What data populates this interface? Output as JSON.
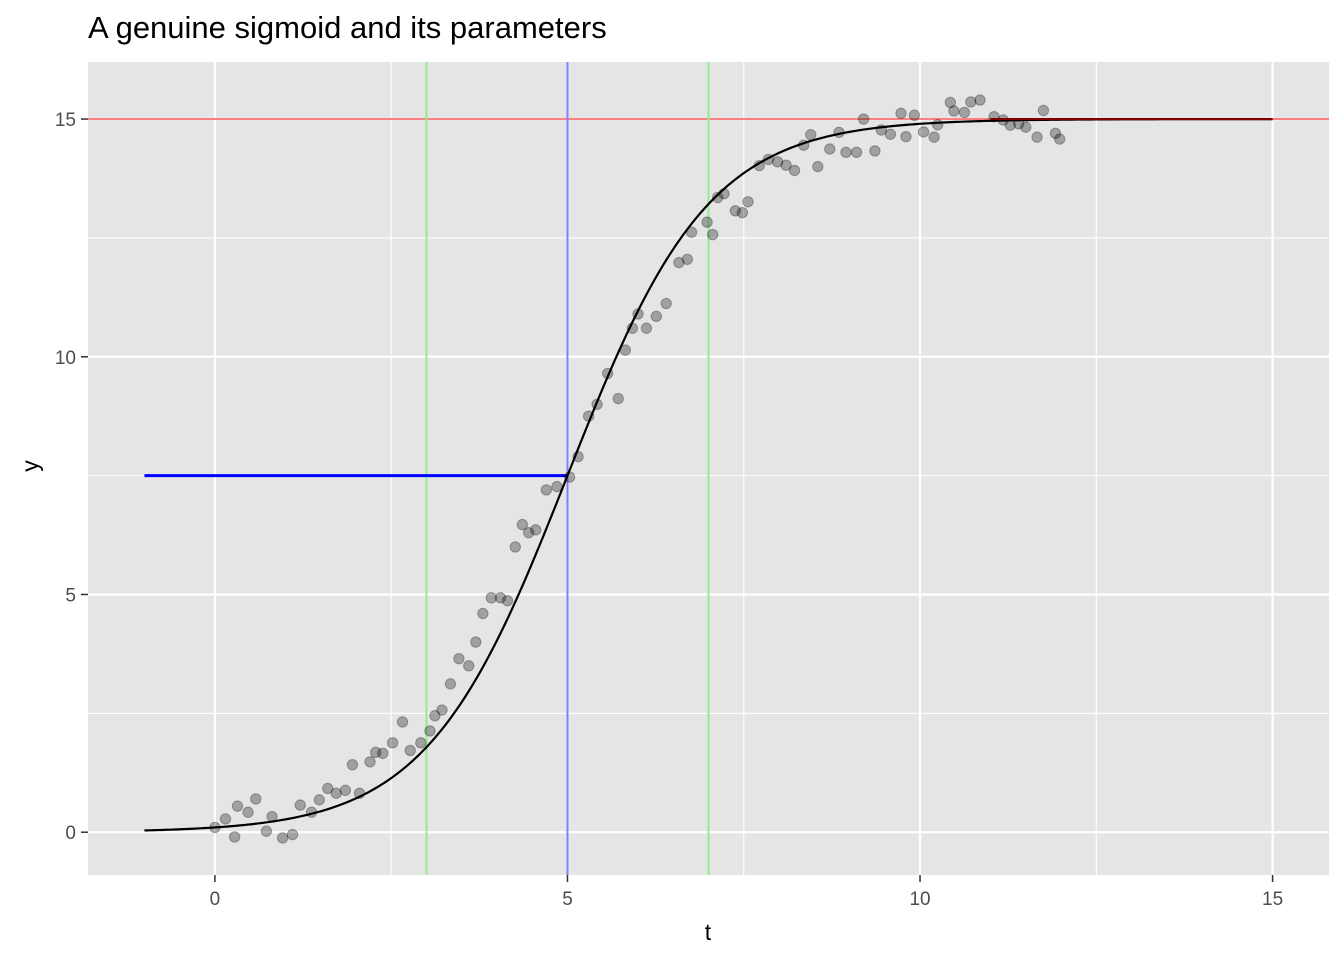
{
  "chart_data": {
    "type": "scatter",
    "title": "A genuine sigmoid and its parameters",
    "xlabel": "t",
    "ylabel": "y",
    "xlim": [
      -1.8,
      15.8
    ],
    "ylim": [
      -0.9,
      16.2
    ],
    "x_ticks": [
      0,
      5,
      10,
      15
    ],
    "y_ticks": [
      0,
      5,
      10,
      15
    ],
    "x_tick_labels": [
      "0",
      "5",
      "10",
      "15"
    ],
    "y_tick_labels": [
      "0",
      "5",
      "10",
      "15"
    ],
    "grid": true,
    "legend": "none",
    "colors": {
      "panel": "#e5e5e5",
      "grid": "#ffffff",
      "points": "#000000",
      "curve": "#000000",
      "maximum_line": "#ff8080",
      "midpoint_line": "#8080ff",
      "half_height_line": "#0000ff",
      "slope_lines": "#90ee90",
      "curve_overlap": "#800000"
    },
    "points": {
      "x": [
        0.0,
        0.15,
        0.28,
        0.32,
        0.47,
        0.58,
        0.73,
        0.81,
        0.96,
        1.1,
        1.21,
        1.37,
        1.48,
        1.6,
        1.72,
        1.85,
        1.95,
        2.05,
        2.2,
        2.28,
        2.38,
        2.52,
        2.66,
        2.77,
        2.92,
        3.05,
        3.12,
        3.22,
        3.34,
        3.46,
        3.6,
        3.7,
        3.8,
        3.92,
        4.05,
        4.15,
        4.26,
        4.36,
        4.45,
        4.55,
        4.7,
        4.85,
        5.03,
        5.15,
        5.3,
        5.42,
        5.57,
        5.72,
        5.82,
        5.92,
        6.0,
        6.12,
        6.26,
        6.4,
        6.58,
        6.7,
        6.76,
        6.98,
        7.06,
        7.13,
        7.22,
        7.38,
        7.48,
        7.56,
        7.72,
        7.85,
        7.98,
        8.1,
        8.22,
        8.35,
        8.45,
        8.55,
        8.72,
        8.85,
        8.95,
        9.1,
        9.2,
        9.36,
        9.45,
        9.58,
        9.73,
        9.8,
        9.92,
        10.05,
        10.2,
        10.25,
        10.43,
        10.48,
        10.63,
        10.72,
        10.85,
        11.05,
        11.18,
        11.28,
        11.4,
        11.5,
        11.66,
        11.75,
        11.92,
        11.98
      ],
      "y": [
        0.1,
        0.28,
        -0.1,
        0.55,
        0.42,
        0.7,
        0.02,
        0.33,
        -0.12,
        -0.05,
        0.57,
        0.42,
        0.68,
        0.92,
        0.82,
        0.88,
        1.42,
        0.82,
        1.48,
        1.68,
        1.66,
        1.88,
        2.32,
        1.72,
        1.88,
        2.13,
        2.45,
        2.57,
        3.12,
        3.65,
        3.5,
        4.0,
        4.6,
        4.93,
        4.93,
        4.87,
        6.0,
        6.47,
        6.3,
        6.36,
        7.2,
        7.27,
        7.47,
        7.9,
        8.75,
        9.0,
        9.65,
        9.12,
        10.14,
        10.6,
        10.9,
        10.6,
        10.85,
        11.12,
        11.98,
        12.05,
        12.62,
        12.83,
        12.57,
        13.35,
        13.43,
        13.07,
        13.03,
        13.26,
        14.02,
        14.15,
        14.1,
        14.03,
        13.92,
        14.45,
        14.67,
        14.0,
        14.37,
        14.72,
        14.3,
        14.3,
        15.0,
        14.33,
        14.77,
        14.68,
        15.12,
        14.63,
        15.08,
        14.73,
        14.62,
        14.88,
        15.35,
        15.17,
        15.14,
        15.36,
        15.4,
        15.05,
        14.98,
        14.87,
        14.9,
        14.83,
        14.62,
        15.18,
        14.7,
        14.58
      ]
    },
    "curve": {
      "function": "logistic",
      "maximum": 15,
      "midpoint": 5,
      "slope": 1,
      "t_range": [
        -1,
        15
      ]
    },
    "reference_lines": {
      "maximum_y": 15,
      "midpoint_x": 5,
      "half_height": {
        "y": 7.5,
        "x_from": -1,
        "x_to": 5
      },
      "slope_x": [
        3,
        7
      ]
    }
  }
}
